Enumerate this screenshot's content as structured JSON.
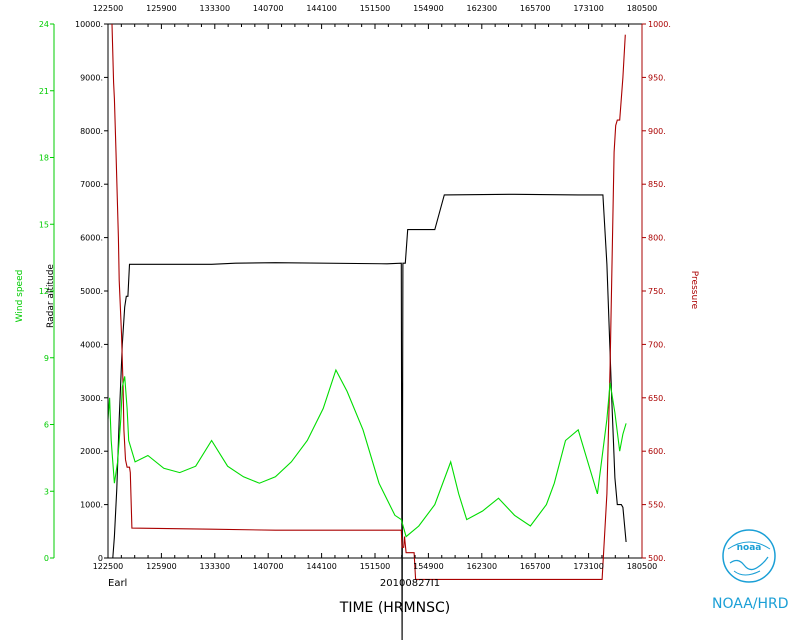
{
  "chart_data": {
    "type": "line",
    "xlabel": "TIME (HRMNSC)",
    "date_label": "20100827I1",
    "storm_label": "Earl",
    "x_ticks": [
      "122500",
      "125900",
      "133300",
      "140700",
      "144100",
      "151500",
      "154900",
      "162300",
      "165700",
      "173100",
      "180500"
    ],
    "x_range_seconds": [
      44700,
      64800
    ],
    "axes": {
      "wind": {
        "label": "Wind speed",
        "ticks": [
          "0",
          "3",
          "6",
          "9",
          "12",
          "15",
          "18",
          "21",
          "24"
        ],
        "range": [
          0,
          25
        ],
        "color": "#00dd00"
      },
      "radar": {
        "label": "Radar altitude",
        "ticks": [
          "0",
          "1000.",
          "2000.",
          "3000.",
          "4000.",
          "5000.",
          "6000.",
          "7000.",
          "8000.",
          "9000.",
          "10000."
        ],
        "range": [
          0,
          10000
        ],
        "color": "#000000"
      },
      "pressure": {
        "label": "Pressure",
        "ticks": [
          "500.",
          "550.",
          "600.",
          "650.",
          "700.",
          "750.",
          "800.",
          "850.",
          "900.",
          "950.",
          "1000."
        ],
        "range": [
          500,
          1000
        ],
        "color": "#aa0000"
      }
    },
    "series": [
      {
        "axis": "radar",
        "color": "#000000",
        "points": [
          [
            "12:25:00",
            0
          ],
          [
            "12:28:00",
            0
          ],
          [
            "12:29:00",
            400
          ],
          [
            "12:30:30",
            1300
          ],
          [
            "12:32:00",
            2600
          ],
          [
            "12:34:00",
            4000
          ],
          [
            "12:35:30",
            4700
          ],
          [
            "12:36:30",
            4900
          ],
          [
            "12:37:30",
            4900
          ],
          [
            "12:38:30",
            5500
          ],
          [
            "13:30:00",
            5500
          ],
          [
            "13:45:00",
            5520
          ],
          [
            "14:10:00",
            5530
          ],
          [
            "15:20:00",
            5510
          ],
          [
            "15:29:00",
            5520
          ],
          [
            "15:29:30",
            -1800
          ],
          [
            "15:30:00",
            5520
          ],
          [
            "15:31:30",
            5520
          ],
          [
            "15:33:00",
            6150
          ],
          [
            "15:50:00",
            6150
          ],
          [
            "15:56:00",
            6800
          ],
          [
            "16:40:00",
            6810
          ],
          [
            "17:20:00",
            6800
          ],
          [
            "17:35:30",
            6800
          ],
          [
            "17:38:00",
            5500
          ],
          [
            "17:41:00",
            3000
          ],
          [
            "17:43:00",
            1500
          ],
          [
            "17:44:30",
            1000
          ],
          [
            "17:47:00",
            1000
          ],
          [
            "17:48:00",
            950
          ],
          [
            "17:50:00",
            300
          ]
        ]
      },
      {
        "axis": "pressure",
        "color": "#aa0000",
        "points": [
          [
            "12:27:30",
            1000
          ],
          [
            "12:28:30",
            945
          ],
          [
            "12:29:00",
            930
          ],
          [
            "12:30:00",
            880
          ],
          [
            "12:31:30",
            800
          ],
          [
            "12:32:00",
            760
          ],
          [
            "12:33:30",
            710
          ],
          [
            "12:34:30",
            660
          ],
          [
            "12:35:00",
            620
          ],
          [
            "12:36:00",
            592
          ],
          [
            "12:37:00",
            585
          ],
          [
            "12:38:30",
            585
          ],
          [
            "12:39:00",
            580
          ],
          [
            "12:40:00",
            528
          ],
          [
            "13:30:00",
            527
          ],
          [
            "14:10:00",
            526
          ],
          [
            "15:29:00",
            526
          ],
          [
            "15:29:30",
            510
          ],
          [
            "15:30:30",
            510
          ],
          [
            "15:31:00",
            520
          ],
          [
            "15:32:00",
            505
          ],
          [
            "15:37:00",
            505
          ],
          [
            "15:38:00",
            480
          ],
          [
            "17:35:00",
            480
          ],
          [
            "17:38:00",
            560
          ],
          [
            "17:40:00",
            680
          ],
          [
            "17:41:30",
            800
          ],
          [
            "17:42:30",
            880
          ],
          [
            "17:43:30",
            905
          ],
          [
            "17:44:30",
            910
          ],
          [
            "17:46:00",
            910
          ],
          [
            "17:47:00",
            930
          ],
          [
            "17:48:00",
            950
          ],
          [
            "17:49:30",
            990
          ]
        ]
      },
      {
        "axis": "wind",
        "color": "#00dd00",
        "points": [
          [
            "12:25:00",
            6.5
          ],
          [
            "12:26:00",
            7.5
          ],
          [
            "12:27:00",
            5.5
          ],
          [
            "12:28:00",
            4.5
          ],
          [
            "12:29:00",
            3.5
          ],
          [
            "12:31:00",
            4.5
          ],
          [
            "12:33:00",
            6.5
          ],
          [
            "12:34:00",
            8.0
          ],
          [
            "12:35:30",
            8.5
          ],
          [
            "12:37:00",
            7.0
          ],
          [
            "12:38:00",
            5.5
          ],
          [
            "12:42:00",
            4.5
          ],
          [
            "12:50:00",
            4.8
          ],
          [
            "13:00:00",
            4.2
          ],
          [
            "13:10:00",
            4.0
          ],
          [
            "13:20:00",
            4.3
          ],
          [
            "13:30:00",
            5.5
          ],
          [
            "13:40:00",
            4.3
          ],
          [
            "13:50:00",
            3.8
          ],
          [
            "14:00:00",
            3.5
          ],
          [
            "14:10:00",
            3.8
          ],
          [
            "14:20:00",
            4.5
          ],
          [
            "14:30:00",
            5.5
          ],
          [
            "14:40:00",
            7.0
          ],
          [
            "14:48:00",
            8.8
          ],
          [
            "14:55:00",
            7.8
          ],
          [
            "15:05:00",
            6.0
          ],
          [
            "15:15:00",
            3.5
          ],
          [
            "15:25:00",
            2.0
          ],
          [
            "15:29:00",
            1.8
          ],
          [
            "15:32:00",
            1.0
          ],
          [
            "15:40:00",
            1.5
          ],
          [
            "15:50:00",
            2.5
          ],
          [
            "16:00:00",
            4.5
          ],
          [
            "16:05:00",
            3.0
          ],
          [
            "16:10:00",
            1.8
          ],
          [
            "16:20:00",
            2.2
          ],
          [
            "16:30:00",
            2.8
          ],
          [
            "16:40:00",
            2.0
          ],
          [
            "16:50:00",
            1.5
          ],
          [
            "17:00:00",
            2.5
          ],
          [
            "17:05:00",
            3.5
          ],
          [
            "17:12:00",
            5.5
          ],
          [
            "17:20:00",
            6.0
          ],
          [
            "17:28:00",
            4.0
          ],
          [
            "17:32:00",
            3.0
          ],
          [
            "17:38:00",
            6.5
          ],
          [
            "17:40:00",
            8.2
          ],
          [
            "17:43:00",
            6.8
          ],
          [
            "17:46:00",
            5.0
          ],
          [
            "17:48:00",
            5.8
          ],
          [
            "17:50:00",
            6.3
          ]
        ]
      }
    ]
  },
  "branding": {
    "text": "NOAA/HRD",
    "logo_text": "noaa"
  }
}
